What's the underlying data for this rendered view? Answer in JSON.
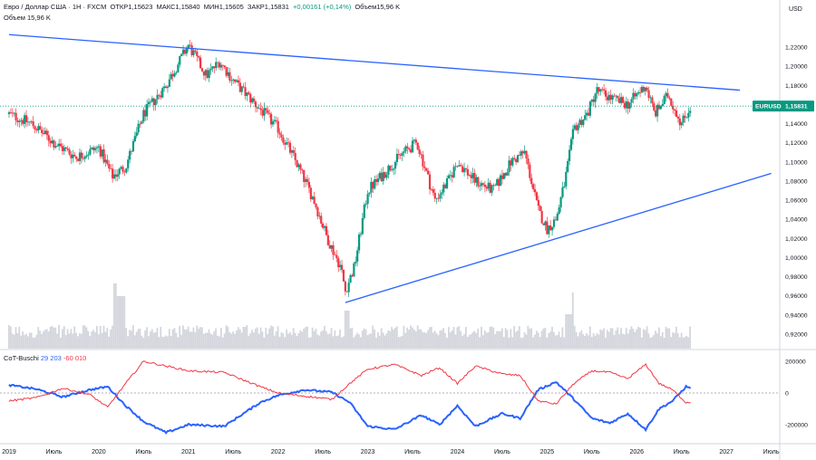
{
  "header": {
    "symbol_line": "Евро / Доллар США · 1Н · FXCM",
    "open": "ОТКР1,15623",
    "high": "МАКС1,15840",
    "low": "МИН1,15605",
    "close": "ЗАКР1,15831",
    "change": "+0,00161 (+0,14%)",
    "volume_label": "Объем15,96 K"
  },
  "volume_legend": "Объем  15,96 K",
  "cot_legend": {
    "name": "CoT-Buschi",
    "v1": "29 203",
    "v2": "-60 010"
  },
  "price_axis_label": "USD",
  "price_badge": {
    "symbol": "EURUSD",
    "value": "1,15831"
  },
  "colors": {
    "up": "#089981",
    "down": "#f23645",
    "trend": "#2962ff",
    "cot1": "#2962ff",
    "cot2": "#f23645",
    "volume": "#c5c8d1"
  },
  "chart_data": [
    {
      "type": "candlestick",
      "symbol": "EURUSD",
      "timeframe": "1Н",
      "y_ticks": [
        "1,22000",
        "1,20000",
        "1,18000",
        "1,16000",
        "1,14000",
        "1,12000",
        "1,10000",
        "1,08000",
        "1,06000",
        "1,04000",
        "1,02000",
        "1,00000",
        "0,98000",
        "0,96000",
        "0,94000",
        "0,92000"
      ],
      "ylim": [
        0.915,
        1.235
      ],
      "x_ticks": [
        "2019",
        "Июль",
        "2020",
        "Июль",
        "2021",
        "Июль",
        "2022",
        "Июль",
        "2023",
        "Июль",
        "2024",
        "Июль",
        "2025",
        "Июль",
        "2026",
        "Июль",
        "2027",
        "Июль"
      ],
      "close_path": [
        [
          2019.0,
          1.15
        ],
        [
          2019.25,
          1.14
        ],
        [
          2019.5,
          1.12
        ],
        [
          2019.75,
          1.105
        ],
        [
          2020.0,
          1.115
        ],
        [
          2020.15,
          1.085
        ],
        [
          2020.3,
          1.095
        ],
        [
          2020.5,
          1.15
        ],
        [
          2020.75,
          1.18
        ],
        [
          2021.0,
          1.222
        ],
        [
          2021.2,
          1.19
        ],
        [
          2021.35,
          1.205
        ],
        [
          2021.5,
          1.185
        ],
        [
          2021.75,
          1.16
        ],
        [
          2022.0,
          1.135
        ],
        [
          2022.2,
          1.1
        ],
        [
          2022.4,
          1.06
        ],
        [
          2022.55,
          1.02
        ],
        [
          2022.7,
          0.99
        ],
        [
          2022.75,
          0.965
        ],
        [
          2022.85,
          0.99
        ],
        [
          2023.0,
          1.07
        ],
        [
          2023.2,
          1.09
        ],
        [
          2023.4,
          1.11
        ],
        [
          2023.55,
          1.12
        ],
        [
          2023.75,
          1.06
        ],
        [
          2023.9,
          1.08
        ],
        [
          2024.0,
          1.1
        ],
        [
          2024.2,
          1.08
        ],
        [
          2024.4,
          1.07
        ],
        [
          2024.6,
          1.1
        ],
        [
          2024.75,
          1.11
        ],
        [
          2024.9,
          1.05
        ],
        [
          2025.0,
          1.03
        ],
        [
          2025.1,
          1.04
        ],
        [
          2025.2,
          1.08
        ],
        [
          2025.3,
          1.135
        ],
        [
          2025.45,
          1.15
        ],
        [
          2025.55,
          1.175
        ],
        [
          2025.75,
          1.165
        ],
        [
          2025.9,
          1.16
        ],
        [
          2026.0,
          1.17
        ],
        [
          2026.1,
          1.18
        ],
        [
          2026.2,
          1.15
        ],
        [
          2026.35,
          1.17
        ],
        [
          2026.5,
          1.14
        ],
        [
          2026.6,
          1.158
        ]
      ],
      "trendlines": [
        {
          "from": [
            2019.0,
            1.233
          ],
          "to": [
            2027.15,
            1.175
          ]
        },
        {
          "from": [
            2022.75,
            0.953
          ],
          "to": [
            2027.5,
            1.088
          ]
        }
      ],
      "last_price": 1.15831
    },
    {
      "type": "line",
      "title": "CoT-Buschi",
      "y_ticks": [
        "200000",
        "0",
        "-200000"
      ],
      "ylim": [
        -270000,
        270000
      ],
      "series": [
        {
          "name": "29 203",
          "color": "#2962ff",
          "values": [
            [
              2019.0,
              50000
            ],
            [
              2019.3,
              25000
            ],
            [
              2019.6,
              -25000
            ],
            [
              2019.9,
              20000
            ],
            [
              2020.1,
              40000
            ],
            [
              2020.3,
              -80000
            ],
            [
              2020.5,
              -180000
            ],
            [
              2020.75,
              -250000
            ],
            [
              2021.0,
              -200000
            ],
            [
              2021.4,
              -210000
            ],
            [
              2021.8,
              -60000
            ],
            [
              2022.0,
              -15000
            ],
            [
              2022.3,
              20000
            ],
            [
              2022.6,
              5000
            ],
            [
              2022.8,
              -60000
            ],
            [
              2023.0,
              -210000
            ],
            [
              2023.3,
              -230000
            ],
            [
              2023.6,
              -140000
            ],
            [
              2023.8,
              -200000
            ],
            [
              2024.0,
              -80000
            ],
            [
              2024.2,
              -210000
            ],
            [
              2024.5,
              -130000
            ],
            [
              2024.7,
              -160000
            ],
            [
              2024.9,
              20000
            ],
            [
              2025.1,
              70000
            ],
            [
              2025.3,
              -40000
            ],
            [
              2025.5,
              -160000
            ],
            [
              2025.7,
              -190000
            ],
            [
              2025.9,
              -130000
            ],
            [
              2026.1,
              -230000
            ],
            [
              2026.25,
              -100000
            ],
            [
              2026.4,
              -50000
            ],
            [
              2026.55,
              40000
            ],
            [
              2026.6,
              29203
            ]
          ]
        },
        {
          "name": "-60 010",
          "color": "#f23645",
          "values": [
            [
              2019.0,
              -50000
            ],
            [
              2019.3,
              -30000
            ],
            [
              2019.6,
              30000
            ],
            [
              2019.9,
              -10000
            ],
            [
              2020.1,
              -90000
            ],
            [
              2020.3,
              60000
            ],
            [
              2020.5,
              200000
            ],
            [
              2020.75,
              170000
            ],
            [
              2021.0,
              140000
            ],
            [
              2021.4,
              130000
            ],
            [
              2021.8,
              40000
            ],
            [
              2022.0,
              0
            ],
            [
              2022.3,
              -20000
            ],
            [
              2022.6,
              -40000
            ],
            [
              2022.8,
              60000
            ],
            [
              2023.0,
              150000
            ],
            [
              2023.3,
              180000
            ],
            [
              2023.6,
              110000
            ],
            [
              2023.8,
              160000
            ],
            [
              2024.0,
              60000
            ],
            [
              2024.2,
              170000
            ],
            [
              2024.5,
              120000
            ],
            [
              2024.7,
              110000
            ],
            [
              2024.9,
              -50000
            ],
            [
              2025.1,
              -70000
            ],
            [
              2025.3,
              60000
            ],
            [
              2025.5,
              140000
            ],
            [
              2025.7,
              130000
            ],
            [
              2025.9,
              90000
            ],
            [
              2026.1,
              180000
            ],
            [
              2026.25,
              60000
            ],
            [
              2026.4,
              20000
            ],
            [
              2026.55,
              -60000
            ],
            [
              2026.6,
              -60010
            ]
          ]
        }
      ]
    }
  ]
}
